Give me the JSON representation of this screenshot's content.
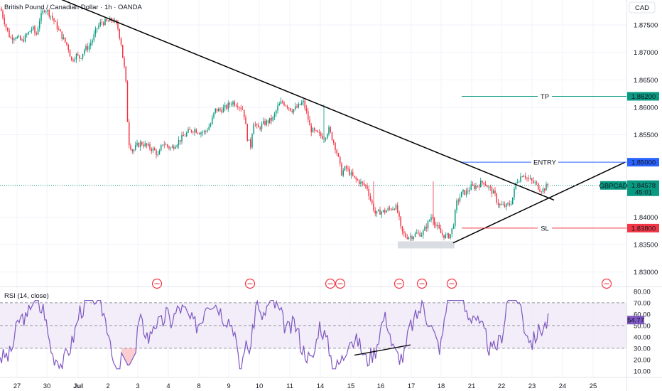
{
  "title": "British Pound / Canadian Dollar · 1h · OANDA",
  "currency": "CAD",
  "colors": {
    "up": "#089981",
    "down": "#f23645",
    "trend": "#000000",
    "entry": "#2962ff",
    "tp": "#089981",
    "sl": "#f23645",
    "rsi": "#7e57c2",
    "rsi_band": "#ede7f6",
    "price_line": "#089981",
    "support_zone": "#d1d4dc"
  },
  "price_axis": {
    "ticks": [
      "1.87500",
      "1.87000",
      "1.86500",
      "1.86000",
      "1.85500",
      "1.84000",
      "1.83500",
      "1.83000"
    ],
    "range": [
      1.8275,
      1.8785
    ]
  },
  "price_markers": {
    "tp": {
      "label": "TP",
      "value": "1.86200"
    },
    "entry": {
      "label": "ENTRY",
      "value": "1.85000"
    },
    "current": {
      "symbol": "GBPCAD",
      "value": "1.84578",
      "countdown": "45:01"
    },
    "sl": {
      "label": "SL",
      "value": "1.83800"
    }
  },
  "x_axis": {
    "labels": [
      "27",
      "30",
      "Jul",
      "2",
      "3",
      "4",
      "8",
      "9",
      "10",
      "11",
      "14",
      "15",
      "16",
      "17",
      "18",
      "21",
      "22",
      "23",
      "24",
      "25"
    ]
  },
  "rsi": {
    "title": "RSI (14, close)",
    "value": "54.77",
    "ticks": [
      "80.00",
      "70.00",
      "60.00",
      "50.00",
      "40.00",
      "30.00",
      "20.00",
      "10.00"
    ],
    "range": [
      5,
      83
    ],
    "upper": 70,
    "lower": 30,
    "mid": 50
  },
  "chart_data": {
    "type": "candlestick",
    "title": "British Pound / Canadian Dollar · 1h · OANDA",
    "symbol": "GBPCAD",
    "y_unit": "CAD",
    "ylim": [
      1.8275,
      1.8785
    ],
    "x_labels": [
      "27",
      "30",
      "Jul",
      "2",
      "3",
      "4",
      "8",
      "9",
      "10",
      "11",
      "14",
      "15",
      "16",
      "17",
      "18",
      "21",
      "22",
      "23",
      "24",
      "25"
    ],
    "price_path": [
      [
        0,
        1.878
      ],
      [
        8,
        1.8745
      ],
      [
        14,
        1.8725
      ],
      [
        20,
        1.873
      ],
      [
        30,
        1.872
      ],
      [
        45,
        1.8745
      ],
      [
        50,
        1.873
      ],
      [
        55,
        1.876
      ],
      [
        62,
        1.878
      ],
      [
        66,
        1.8775
      ],
      [
        72,
        1.8765
      ],
      [
        80,
        1.8745
      ],
      [
        88,
        1.8725
      ],
      [
        95,
        1.871
      ],
      [
        100,
        1.8685
      ],
      [
        106,
        1.8695
      ],
      [
        112,
        1.869
      ],
      [
        118,
        1.8705
      ],
      [
        124,
        1.871
      ],
      [
        130,
        1.8725
      ],
      [
        136,
        1.8745
      ],
      [
        142,
        1.8755
      ],
      [
        150,
        1.8755
      ],
      [
        158,
        1.876
      ],
      [
        165,
        1.8745
      ],
      [
        170,
        1.8715
      ],
      [
        173,
        1.868
      ],
      [
        176,
        1.866
      ],
      [
        178,
        1.859
      ],
      [
        181,
        1.8535
      ],
      [
        186,
        1.852
      ],
      [
        192,
        1.853
      ],
      [
        198,
        1.8535
      ],
      [
        205,
        1.853
      ],
      [
        212,
        1.8525
      ],
      [
        218,
        1.852
      ],
      [
        222,
        1.851
      ],
      [
        228,
        1.8535
      ],
      [
        234,
        1.853
      ],
      [
        240,
        1.8525
      ],
      [
        248,
        1.8535
      ],
      [
        256,
        1.8545
      ],
      [
        264,
        1.8555
      ],
      [
        272,
        1.856
      ],
      [
        280,
        1.8555
      ],
      [
        288,
        1.8555
      ],
      [
        296,
        1.857
      ],
      [
        302,
        1.8595
      ],
      [
        310,
        1.8595
      ],
      [
        318,
        1.86
      ],
      [
        326,
        1.861
      ],
      [
        334,
        1.8605
      ],
      [
        342,
        1.8595
      ],
      [
        348,
        1.854
      ],
      [
        352,
        1.853
      ],
      [
        356,
        1.8575
      ],
      [
        362,
        1.856
      ],
      [
        370,
        1.857
      ],
      [
        378,
        1.8575
      ],
      [
        384,
        1.858
      ],
      [
        390,
        1.86
      ],
      [
        396,
        1.861
      ],
      [
        402,
        1.8605
      ],
      [
        410,
        1.8595
      ],
      [
        418,
        1.86
      ],
      [
        426,
        1.861
      ],
      [
        432,
        1.8585
      ],
      [
        436,
        1.856
      ],
      [
        442,
        1.8555
      ],
      [
        448,
        1.855
      ],
      [
        456,
        1.8545
      ],
      [
        462,
        1.856
      ],
      [
        468,
        1.854
      ],
      [
        472,
        1.8525
      ],
      [
        476,
        1.8505
      ],
      [
        480,
        1.848
      ],
      [
        486,
        1.849
      ],
      [
        492,
        1.848
      ],
      [
        498,
        1.847
      ],
      [
        504,
        1.8465
      ],
      [
        510,
        1.846
      ],
      [
        516,
        1.8455
      ],
      [
        520,
        1.8435
      ],
      [
        524,
        1.842
      ],
      [
        528,
        1.8405
      ],
      [
        534,
        1.841
      ],
      [
        540,
        1.841
      ],
      [
        548,
        1.8415
      ],
      [
        556,
        1.842
      ],
      [
        560,
        1.8405
      ],
      [
        564,
        1.8375
      ],
      [
        570,
        1.8365
      ],
      [
        578,
        1.8365
      ],
      [
        586,
        1.837
      ],
      [
        594,
        1.837
      ],
      [
        600,
        1.8385
      ],
      [
        604,
        1.8395
      ],
      [
        608,
        1.8405
      ],
      [
        612,
        1.8385
      ],
      [
        616,
        1.838
      ],
      [
        620,
        1.837
      ],
      [
        626,
        1.8365
      ],
      [
        630,
        1.8365
      ],
      [
        634,
        1.837
      ],
      [
        638,
        1.839
      ],
      [
        642,
        1.8425
      ],
      [
        646,
        1.8435
      ],
      [
        650,
        1.8445
      ],
      [
        656,
        1.8445
      ],
      [
        662,
        1.8455
      ],
      [
        668,
        1.8455
      ],
      [
        674,
        1.846
      ],
      [
        680,
        1.8465
      ],
      [
        686,
        1.8455
      ],
      [
        690,
        1.845
      ],
      [
        696,
        1.844
      ],
      [
        700,
        1.8425
      ],
      [
        706,
        1.842
      ],
      [
        712,
        1.842
      ],
      [
        718,
        1.8425
      ],
      [
        722,
        1.844
      ],
      [
        726,
        1.8465
      ],
      [
        730,
        1.847
      ],
      [
        736,
        1.848
      ],
      [
        742,
        1.847
      ],
      [
        748,
        1.8465
      ],
      [
        754,
        1.846
      ],
      [
        760,
        1.845
      ],
      [
        764,
        1.845
      ],
      [
        768,
        1.8455
      ],
      [
        772,
        1.8458
      ]
    ],
    "series": [
      {
        "name": "GBPCAD",
        "last_price": 1.84578
      },
      {
        "name": "RSI (14, close)",
        "last_value": 54.77,
        "levels": [
          30,
          50,
          70
        ]
      }
    ],
    "annotations": [
      {
        "label": "TP",
        "value": 1.862
      },
      {
        "label": "ENTRY",
        "value": 1.85
      },
      {
        "label": "SL",
        "value": 1.838
      },
      {
        "type": "descending trendline",
        "from": {
          "x": "27",
          "y": 1.882
        },
        "to": {
          "x": "22",
          "y": 1.8435
        }
      },
      {
        "type": "ascending trendline",
        "from": {
          "x": "17",
          "y": 1.8353
        },
        "to": {
          "x": "25",
          "y": 1.85
        }
      },
      {
        "type": "support zone",
        "value": 1.8353
      }
    ]
  }
}
